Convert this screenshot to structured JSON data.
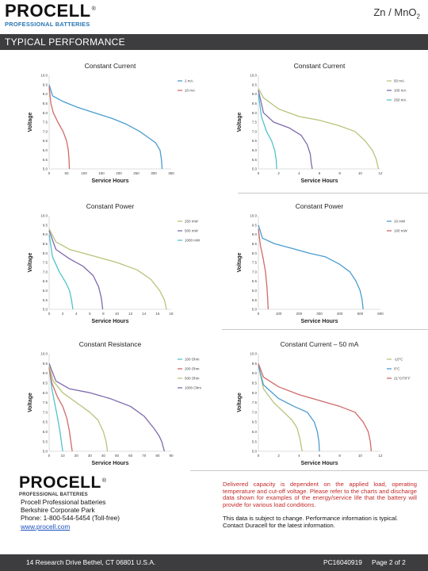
{
  "header": {
    "brand": "PROCELL",
    "registered": "®",
    "brand_sub": "PROFESSIONAL BATTERIES",
    "chemistry_main": "Zn / MnO",
    "chemistry_sub": "2",
    "section_title": "TYPICAL PERFORMANCE"
  },
  "colors": {
    "band": "#3d3d3f",
    "blue": "#4a9ccf",
    "red": "#d06a6a",
    "teal": "#52c2cc",
    "purple": "#7f6aac",
    "olive": "#b6c47a"
  },
  "chart_data": [
    {
      "type": "line",
      "title": "Constant Current",
      "xlabel": "Service Hours",
      "ylabel": "Voltage",
      "xlim": [
        0,
        350
      ],
      "ylim": [
        5.0,
        10.0
      ],
      "xticks": [
        0,
        50,
        100,
        150,
        200,
        250,
        300,
        350
      ],
      "yticks": [
        5.0,
        5.5,
        6.0,
        6.5,
        7.0,
        7.5,
        8.0,
        8.5,
        9.0,
        9.5,
        10.0
      ],
      "series": [
        {
          "name": "2 mA",
          "color": "#4a9ccf",
          "points": [
            [
              0,
              9.5
            ],
            [
              10,
              8.9
            ],
            [
              40,
              8.6
            ],
            [
              80,
              8.3
            ],
            [
              130,
              8.0
            ],
            [
              180,
              7.7
            ],
            [
              220,
              7.4
            ],
            [
              260,
              7.0
            ],
            [
              290,
              6.6
            ],
            [
              305,
              6.4
            ],
            [
              318,
              6.0
            ],
            [
              322,
              5.5
            ],
            [
              324,
              5.0
            ]
          ]
        },
        {
          "name": "10 mA",
          "color": "#d06a6a",
          "points": [
            [
              0,
              9.4
            ],
            [
              5,
              8.5
            ],
            [
              12,
              8.0
            ],
            [
              25,
              7.5
            ],
            [
              40,
              7.0
            ],
            [
              50,
              6.5
            ],
            [
              55,
              6.0
            ],
            [
              57,
              5.5
            ],
            [
              58,
              5.0
            ]
          ]
        }
      ]
    },
    {
      "type": "line",
      "title": "Constant Current",
      "xlabel": "Service Hours",
      "ylabel": "Voltage",
      "xlim": [
        0,
        12
      ],
      "ylim": [
        5.0,
        10.0
      ],
      "xticks": [
        0,
        2,
        4,
        6,
        8,
        10,
        12
      ],
      "yticks": [
        5.0,
        5.5,
        6.0,
        6.5,
        7.0,
        7.5,
        8.0,
        8.5,
        9.0,
        9.5,
        10.0
      ],
      "series": [
        {
          "name": "50 mA",
          "color": "#b6c47a",
          "points": [
            [
              0,
              9.3
            ],
            [
              0.5,
              8.8
            ],
            [
              2,
              8.2
            ],
            [
              4,
              7.8
            ],
            [
              6,
              7.6
            ],
            [
              8,
              7.3
            ],
            [
              9.5,
              7.0
            ],
            [
              10.5,
              6.5
            ],
            [
              11.2,
              6.0
            ],
            [
              11.6,
              5.5
            ],
            [
              11.8,
              5.0
            ]
          ]
        },
        {
          "name": "100 mA",
          "color": "#7f6aac",
          "points": [
            [
              0,
              9.2
            ],
            [
              0.5,
              8.0
            ],
            [
              1.5,
              7.5
            ],
            [
              3,
              7.2
            ],
            [
              4.2,
              6.8
            ],
            [
              4.8,
              6.3
            ],
            [
              5.1,
              5.8
            ],
            [
              5.2,
              5.3
            ],
            [
              5.3,
              5.0
            ]
          ]
        },
        {
          "name": "250 mA",
          "color": "#52c2cc",
          "points": [
            [
              0,
              9.0
            ],
            [
              0.3,
              7.8
            ],
            [
              0.8,
              7.0
            ],
            [
              1.3,
              6.5
            ],
            [
              1.6,
              6.0
            ],
            [
              1.75,
              5.5
            ],
            [
              1.8,
              5.0
            ]
          ]
        }
      ]
    },
    {
      "type": "line",
      "title": "Constant Power",
      "xlabel": "Service Hours",
      "ylabel": "Voltage",
      "xlim": [
        0,
        18
      ],
      "ylim": [
        5.0,
        10.0
      ],
      "xticks": [
        0,
        2,
        4,
        6,
        8,
        10,
        12,
        14,
        16,
        18
      ],
      "yticks": [
        5.0,
        5.5,
        6.0,
        6.5,
        7.0,
        7.5,
        8.0,
        8.5,
        9.0,
        9.5,
        10.0
      ],
      "series": [
        {
          "name": "250 mW",
          "color": "#b6c47a",
          "points": [
            [
              0,
              9.3
            ],
            [
              1,
              8.6
            ],
            [
              3,
              8.2
            ],
            [
              6,
              7.9
            ],
            [
              10,
              7.5
            ],
            [
              13,
              7.1
            ],
            [
              15,
              6.6
            ],
            [
              16.3,
              6.0
            ],
            [
              17,
              5.5
            ],
            [
              17.3,
              5.0
            ]
          ]
        },
        {
          "name": "500 mW",
          "color": "#7f6aac",
          "points": [
            [
              0,
              9.2
            ],
            [
              1,
              8.2
            ],
            [
              3,
              7.7
            ],
            [
              5,
              7.3
            ],
            [
              6.5,
              6.8
            ],
            [
              7.3,
              6.2
            ],
            [
              7.7,
              5.6
            ],
            [
              7.9,
              5.0
            ]
          ]
        },
        {
          "name": "1000 mW",
          "color": "#52c2cc",
          "points": [
            [
              0,
              9.0
            ],
            [
              0.5,
              7.8
            ],
            [
              1.5,
              7.0
            ],
            [
              2.5,
              6.4
            ],
            [
              3,
              6.0
            ],
            [
              3.3,
              5.5
            ],
            [
              3.5,
              5.0
            ]
          ]
        }
      ]
    },
    {
      "type": "line",
      "title": "Constant Power",
      "xlabel": "Service Hours",
      "ylabel": "Voltage",
      "xlim": [
        0,
        600
      ],
      "ylim": [
        5.0,
        10.0
      ],
      "xticks": [
        0,
        100,
        200,
        300,
        400,
        500,
        600
      ],
      "yticks": [
        5.0,
        5.5,
        6.0,
        6.5,
        7.0,
        7.5,
        8.0,
        8.5,
        9.0,
        9.5,
        10.0
      ],
      "series": [
        {
          "name": "10 mW",
          "color": "#4a9ccf",
          "points": [
            [
              0,
              9.5
            ],
            [
              20,
              8.8
            ],
            [
              80,
              8.5
            ],
            [
              150,
              8.3
            ],
            [
              250,
              8.0
            ],
            [
              330,
              7.8
            ],
            [
              400,
              7.4
            ],
            [
              450,
              7.0
            ],
            [
              480,
              6.5
            ],
            [
              500,
              6.0
            ],
            [
              510,
              5.5
            ],
            [
              515,
              5.0
            ]
          ]
        },
        {
          "name": "100 mW",
          "color": "#d06a6a",
          "points": [
            [
              0,
              9.3
            ],
            [
              10,
              8.4
            ],
            [
              22,
              7.8
            ],
            [
              35,
              7.0
            ],
            [
              42,
              6.2
            ],
            [
              46,
              5.5
            ],
            [
              48,
              5.0
            ]
          ]
        }
      ]
    },
    {
      "type": "line",
      "title": "Constant Resistance",
      "xlabel": "Service Hours",
      "ylabel": "Voltage",
      "xlim": [
        0,
        90
      ],
      "ylim": [
        5.0,
        10.0
      ],
      "xticks": [
        0,
        10,
        20,
        30,
        40,
        50,
        60,
        70,
        80,
        90
      ],
      "yticks": [
        5.0,
        5.5,
        6.0,
        6.5,
        7.0,
        7.5,
        8.0,
        8.5,
        9.0,
        9.5,
        10.0
      ],
      "series": [
        {
          "name": "100 Ohm",
          "color": "#52c2cc",
          "points": [
            [
              0,
              9.3
            ],
            [
              2,
              8.2
            ],
            [
              4,
              7.5
            ],
            [
              6,
              6.8
            ],
            [
              8,
              6.0
            ],
            [
              9,
              5.5
            ],
            [
              10,
              5.0
            ]
          ]
        },
        {
          "name": "200 Ohm",
          "color": "#d06a6a",
          "points": [
            [
              0,
              9.3
            ],
            [
              2,
              8.5
            ],
            [
              6,
              7.8
            ],
            [
              10,
              7.3
            ],
            [
              13,
              6.7
            ],
            [
              15,
              6.0
            ],
            [
              16,
              5.5
            ],
            [
              17,
              5.0
            ]
          ]
        },
        {
          "name": "500 Ohm",
          "color": "#b6c47a",
          "points": [
            [
              0,
              9.4
            ],
            [
              3,
              8.6
            ],
            [
              10,
              8.0
            ],
            [
              20,
              7.5
            ],
            [
              30,
              7.0
            ],
            [
              36,
              6.6
            ],
            [
              40,
              6.0
            ],
            [
              42,
              5.5
            ],
            [
              43,
              5.0
            ]
          ]
        },
        {
          "name": "1000 Ohm",
          "color": "#7f6aac",
          "points": [
            [
              0,
              9.5
            ],
            [
              5,
              8.6
            ],
            [
              15,
              8.2
            ],
            [
              30,
              8.0
            ],
            [
              45,
              7.7
            ],
            [
              60,
              7.3
            ],
            [
              70,
              6.8
            ],
            [
              77,
              6.2
            ],
            [
              81,
              5.8
            ],
            [
              83,
              5.5
            ],
            [
              85,
              5.0
            ]
          ]
        }
      ]
    },
    {
      "type": "line",
      "title": "Constant Current – 50 mA",
      "xlabel": "Service Hours",
      "ylabel": "Voltage",
      "xlim": [
        0,
        12
      ],
      "ylim": [
        5.0,
        10.0
      ],
      "xticks": [
        0,
        2,
        4,
        6,
        8,
        10,
        12
      ],
      "yticks": [
        5.0,
        5.5,
        6.0,
        6.5,
        7.0,
        7.5,
        8.0,
        8.5,
        9.0,
        9.5,
        10.0
      ],
      "series": [
        {
          "name": "-10°C",
          "color": "#b6c47a",
          "points": [
            [
              0,
              9.4
            ],
            [
              0.5,
              8.2
            ],
            [
              1.5,
              7.5
            ],
            [
              2.5,
              7.0
            ],
            [
              3.3,
              6.6
            ],
            [
              3.8,
              6.2
            ],
            [
              4.1,
              5.6
            ],
            [
              4.3,
              5.0
            ]
          ]
        },
        {
          "name": "0°C",
          "color": "#4a9ccf",
          "points": [
            [
              0,
              9.4
            ],
            [
              0.5,
              8.4
            ],
            [
              2,
              7.7
            ],
            [
              3.5,
              7.3
            ],
            [
              4.8,
              7.0
            ],
            [
              5.5,
              6.5
            ],
            [
              5.8,
              6.0
            ],
            [
              5.95,
              5.5
            ],
            [
              6,
              5.0
            ]
          ]
        },
        {
          "name": "21°C/70°F",
          "color": "#d06a6a",
          "points": [
            [
              0,
              9.5
            ],
            [
              0.5,
              8.8
            ],
            [
              2,
              8.3
            ],
            [
              4,
              7.9
            ],
            [
              6,
              7.6
            ],
            [
              8,
              7.3
            ],
            [
              9.5,
              7.0
            ],
            [
              10.3,
              6.5
            ],
            [
              10.8,
              6.0
            ],
            [
              11,
              5.5
            ],
            [
              11.1,
              5.0
            ]
          ]
        }
      ]
    }
  ],
  "bottom": {
    "brand": "PROCELL",
    "registered": "®",
    "brand_sub": "PROFESSIONAL BATTERIES",
    "contact_name": "Procell Professional batteries",
    "contact_addr": "Berkshire Corporate Park",
    "contact_phone": "Phone: 1-800-544-5454 (Toll-free)",
    "contact_web": "www.procell.com",
    "note_red": "Delivered capacity is dependent on the applied load, operating temperature and cut-off voltage. Please refer to the charts and discharge data shown for examples of the energy/service life that the battery will provide for various load conditions.",
    "note_black": "This data is subject to change. Performance information is typical. Contact Duracell for the latest information."
  },
  "footer": {
    "address": "14 Research Drive Bethel, CT 06801 U.S.A.",
    "code": "PC16040919",
    "page": "Page 2 of 2"
  }
}
